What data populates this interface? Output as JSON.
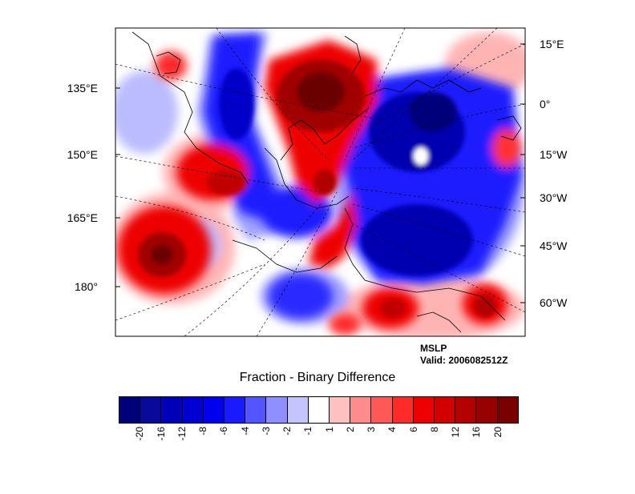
{
  "map": {
    "field": "MSLP",
    "valid": "Valid: 2006082512Z",
    "title": "Fraction - Binary Difference",
    "left_lon_labels": [
      "135°E",
      "150°E",
      "165°E",
      "180°"
    ],
    "right_lon_labels": [
      "15°E",
      "0°",
      "15°W",
      "30°W",
      "45°W",
      "60°W"
    ]
  },
  "colorbar": {
    "colors": [
      "#00007a",
      "#0a0a9a",
      "#0000b8",
      "#0000d2",
      "#0000ee",
      "#1a1aff",
      "#5555ff",
      "#8f8fff",
      "#c4c4ff",
      "#ffffff",
      "#ffc0c0",
      "#ff8c8c",
      "#ff5858",
      "#ff2a2a",
      "#ee0000",
      "#d20000",
      "#b40000",
      "#960000",
      "#7a0000"
    ],
    "labels": [
      "-20",
      "-16",
      "-12",
      "-8",
      "-6",
      "-4",
      "-3",
      "-2",
      "-1",
      "1",
      "2",
      "3",
      "4",
      "6",
      "8",
      "12",
      "16",
      "20"
    ]
  }
}
